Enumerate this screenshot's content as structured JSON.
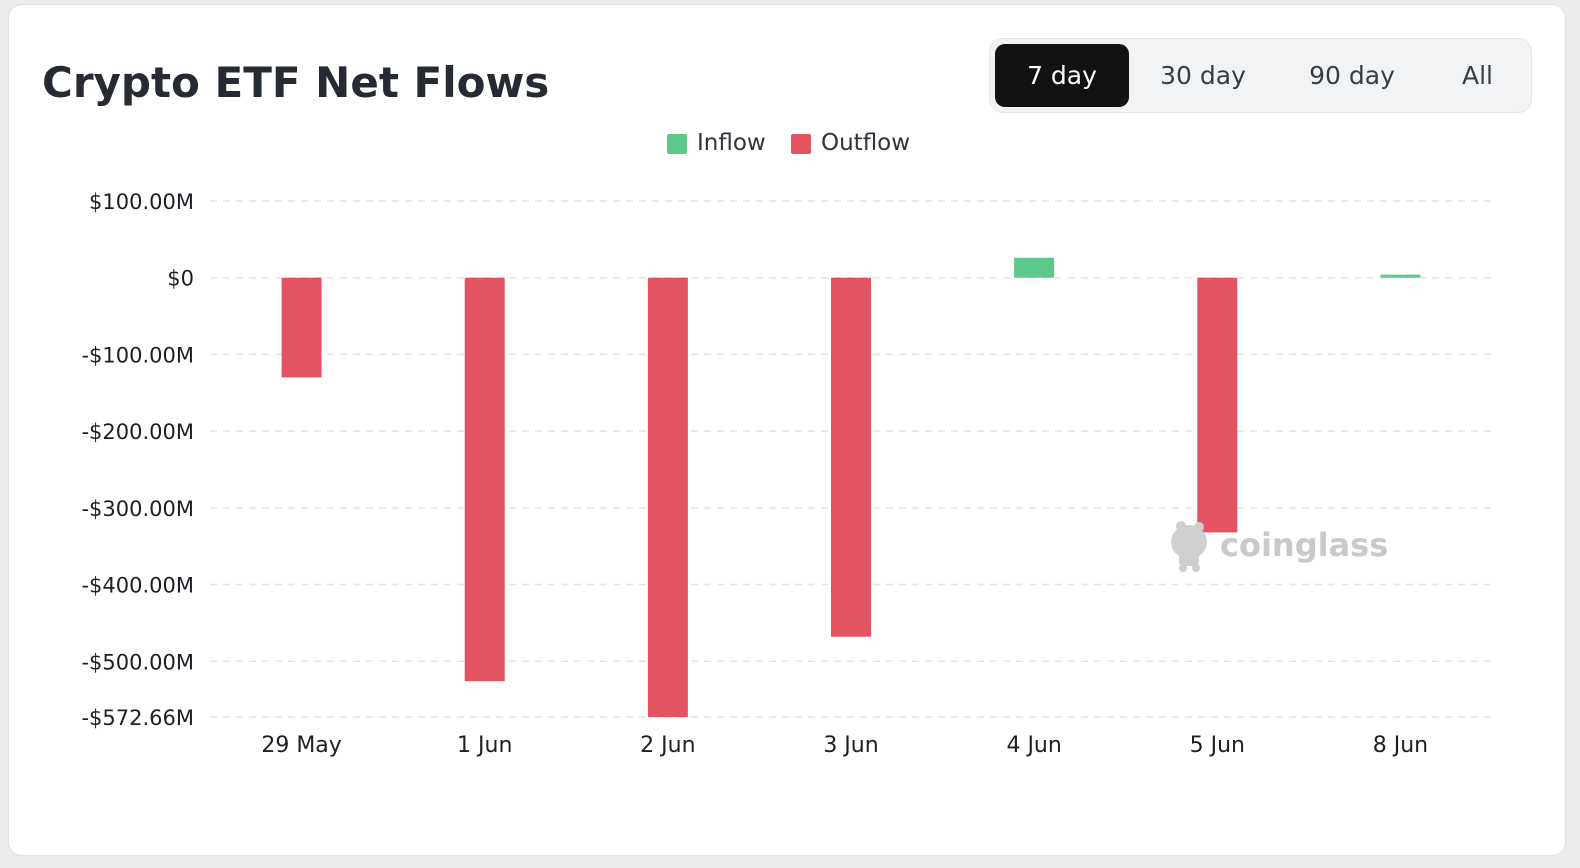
{
  "header": {
    "title": "Crypto ETF Net Flows"
  },
  "tabs": [
    {
      "label": "7 day",
      "active": true
    },
    {
      "label": "30 day",
      "active": false
    },
    {
      "label": "90 day",
      "active": false
    },
    {
      "label": "All",
      "active": false
    }
  ],
  "legend": [
    {
      "label": "Inflow",
      "color": "#5cc98a"
    },
    {
      "label": "Outflow",
      "color": "#e35462"
    }
  ],
  "watermark": "coinglass",
  "chart_data": {
    "type": "bar",
    "categories": [
      "29 May",
      "1 Jun",
      "2 Jun",
      "3 Jun",
      "4 Jun",
      "5 Jun",
      "8 Jun"
    ],
    "values": [
      -130,
      -526,
      -572.66,
      -468,
      26,
      -332,
      4
    ],
    "unit": "M",
    "ylim": [
      -572.66,
      100
    ],
    "yticks": [
      100,
      0,
      -100,
      -200,
      -300,
      -400,
      -500,
      -572.66
    ],
    "ytick_labels": [
      "$100.00M",
      "$0",
      "-$100.00M",
      "-$200.00M",
      "-$300.00M",
      "-$400.00M",
      "-$500.00M",
      "-$572.66M"
    ],
    "grid": true,
    "legend_position": "top-center",
    "colors": {
      "inflow": "#5cc98a",
      "outflow": "#e35462"
    }
  }
}
